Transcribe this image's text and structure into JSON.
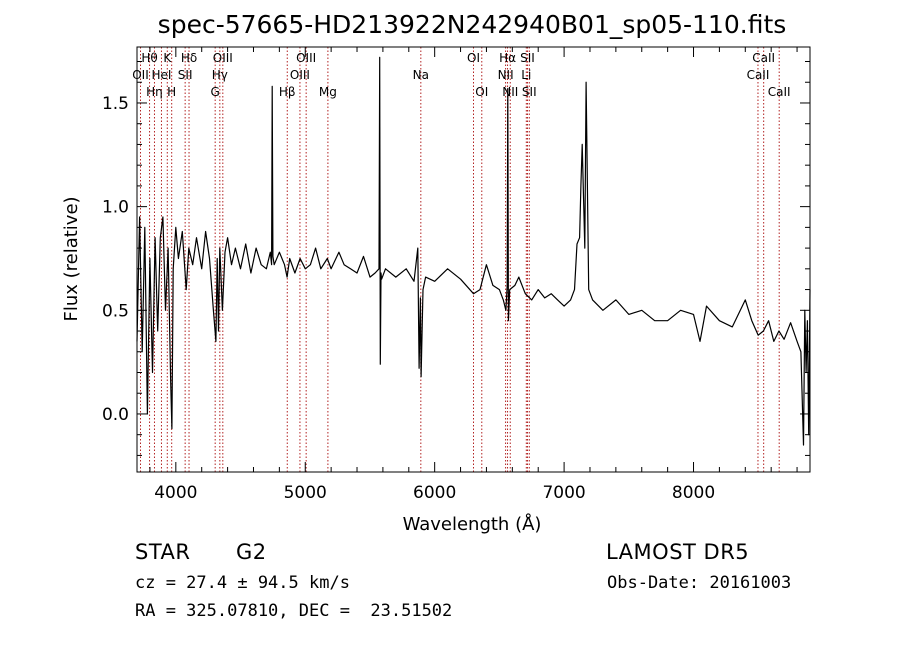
{
  "chart_data": {
    "type": "line",
    "title": "spec-57665-HD213922N242940B01_sp05-110.fits",
    "xlabel": "Wavelength (Å)",
    "ylabel": "Flux (relative)",
    "xlim": [
      3700,
      8900
    ],
    "ylim": [
      -0.28,
      1.77
    ],
    "xticks": [
      4000,
      5000,
      6000,
      7000,
      8000
    ],
    "xtick_labels": [
      "4000",
      "5000",
      "6000",
      "7000",
      "8000"
    ],
    "yticks": [
      0.0,
      0.5,
      1.0,
      1.5
    ],
    "ytick_labels": [
      "0.0",
      "0.5",
      "1.0",
      "1.5"
    ],
    "grid": false,
    "series": [
      {
        "x": [
          3700,
          3720,
          3740,
          3760,
          3780,
          3800,
          3820,
          3840,
          3860,
          3880,
          3900,
          3920,
          3940,
          3960,
          3970,
          3980,
          4000,
          4020,
          4050,
          4080,
          4100,
          4130,
          4160,
          4200,
          4230,
          4260,
          4290,
          4310,
          4320,
          4330,
          4340,
          4360,
          4380,
          4400,
          4430,
          4460,
          4500,
          4540,
          4580,
          4620,
          4660,
          4700,
          4730,
          4740,
          4745,
          4750,
          4760,
          4800,
          4840,
          4860,
          4880,
          4920,
          4960,
          5000,
          5040,
          5080,
          5120,
          5170,
          5200,
          5260,
          5300,
          5350,
          5400,
          5450,
          5500,
          5540,
          5570,
          5575,
          5580,
          5585,
          5590,
          5620,
          5700,
          5780,
          5840,
          5870,
          5880,
          5890,
          5895,
          5910,
          5930,
          6000,
          6100,
          6200,
          6300,
          6350,
          6400,
          6450,
          6500,
          6530,
          6550,
          6560,
          6565,
          6570,
          6580,
          6620,
          6650,
          6700,
          6750,
          6800,
          6850,
          6900,
          6950,
          7000,
          7050,
          7080,
          7100,
          7120,
          7130,
          7140,
          7150,
          7160,
          7170,
          7190,
          7220,
          7300,
          7400,
          7500,
          7600,
          7700,
          7800,
          7900,
          8000,
          8050,
          8100,
          8200,
          8300,
          8400,
          8450,
          8500,
          8540,
          8580,
          8620,
          8660,
          8700,
          8750,
          8800,
          8830,
          8850,
          8860,
          8870,
          8880,
          8890,
          8900
        ],
        "y": [
          0.35,
          0.95,
          0.3,
          0.9,
          0.0,
          0.75,
          0.2,
          0.85,
          0.4,
          0.85,
          0.95,
          0.5,
          0.8,
          0.15,
          -0.07,
          0.7,
          0.9,
          0.75,
          0.88,
          0.6,
          0.8,
          0.72,
          0.85,
          0.7,
          0.88,
          0.75,
          0.5,
          0.35,
          0.75,
          0.4,
          0.8,
          0.5,
          0.78,
          0.85,
          0.72,
          0.8,
          0.7,
          0.82,
          0.68,
          0.8,
          0.72,
          0.7,
          0.78,
          0.72,
          1.58,
          0.76,
          0.72,
          0.78,
          0.72,
          0.66,
          0.75,
          0.68,
          0.75,
          0.7,
          0.72,
          0.8,
          0.7,
          0.75,
          0.7,
          0.78,
          0.72,
          0.7,
          0.68,
          0.76,
          0.66,
          0.68,
          0.7,
          1.72,
          0.24,
          0.68,
          0.65,
          0.7,
          0.66,
          0.7,
          0.64,
          0.8,
          0.22,
          0.56,
          0.18,
          0.6,
          0.66,
          0.64,
          0.7,
          0.65,
          0.58,
          0.6,
          0.72,
          0.62,
          0.6,
          0.55,
          0.5,
          0.62,
          1.57,
          0.45,
          0.6,
          0.62,
          0.66,
          0.58,
          0.55,
          0.6,
          0.56,
          0.58,
          0.55,
          0.52,
          0.55,
          0.6,
          0.82,
          0.85,
          1.1,
          1.3,
          1.05,
          0.8,
          1.6,
          0.6,
          0.55,
          0.5,
          0.55,
          0.48,
          0.5,
          0.45,
          0.45,
          0.5,
          0.48,
          0.35,
          0.52,
          0.45,
          0.42,
          0.55,
          0.45,
          0.38,
          0.4,
          0.45,
          0.35,
          0.4,
          0.36,
          0.44,
          0.35,
          0.3,
          -0.15,
          0.5,
          0.2,
          0.45,
          -0.1,
          0.6
        ]
      }
    ],
    "lines": [
      {
        "name": "OII",
        "x": 3727,
        "row": 1
      },
      {
        "name": "Hθ",
        "x": 3797,
        "row": 0
      },
      {
        "name": "Hη",
        "x": 3835,
        "row": 2
      },
      {
        "name": "HeI",
        "x": 3889,
        "row": 1
      },
      {
        "name": "K",
        "x": 3934,
        "row": 0
      },
      {
        "name": "H",
        "x": 3968,
        "row": 2
      },
      {
        "name": "Hδ",
        "x": 4102,
        "row": 0
      },
      {
        "name": "SII",
        "x": 4072,
        "row": 1
      },
      {
        "name": "OIII",
        "x": 4363,
        "row": 0
      },
      {
        "name": "Hγ",
        "x": 4340,
        "row": 1
      },
      {
        "name": "G",
        "x": 4304,
        "row": 2
      },
      {
        "name": "Hβ",
        "x": 4861,
        "row": 2
      },
      {
        "name": "OIII",
        "x": 5007,
        "row": 0
      },
      {
        "name": "OIII",
        "x": 4959,
        "row": 1
      },
      {
        "name": "Mg",
        "x": 5175,
        "row": 2
      },
      {
        "name": "Na",
        "x": 5893,
        "row": 1
      },
      {
        "name": "OI",
        "x": 6300,
        "row": 0
      },
      {
        "name": "OI",
        "x": 6364,
        "row": 2
      },
      {
        "name": "Hα",
        "x": 6563,
        "row": 0
      },
      {
        "name": "NII",
        "x": 6548,
        "row": 1
      },
      {
        "name": "NII",
        "x": 6584,
        "row": 2
      },
      {
        "name": "SII",
        "x": 6717,
        "row": 0
      },
      {
        "name": "Li",
        "x": 6708,
        "row": 1
      },
      {
        "name": "SII",
        "x": 6731,
        "row": 2
      },
      {
        "name": "CaII",
        "x": 8542,
        "row": 0
      },
      {
        "name": "CaII",
        "x": 8498,
        "row": 1
      },
      {
        "name": "CaII",
        "x": 8662,
        "row": 2
      }
    ],
    "line_color": "#b22222",
    "spectrum_color": "#000000"
  },
  "info": {
    "object_class": "STAR",
    "subclass": "G2",
    "cz": "cz = 27.4 ± 94.5 km/s",
    "radec": "RA = 325.07810, DEC =  23.51502",
    "survey": "LAMOST DR5",
    "obs_date": "Obs-Date: 20161003"
  }
}
